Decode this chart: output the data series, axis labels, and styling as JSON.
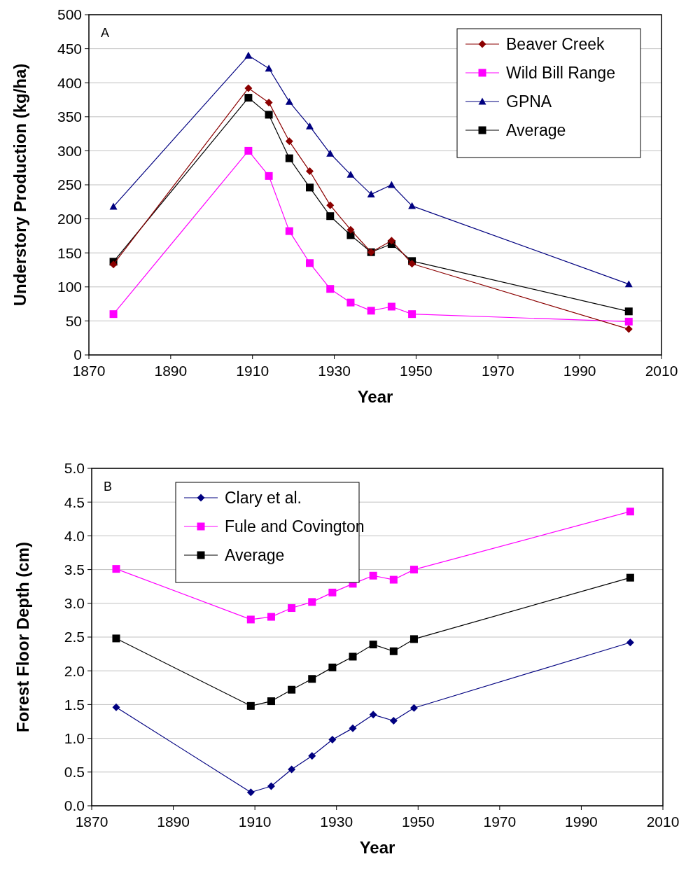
{
  "chart_data": [
    {
      "type": "line",
      "xlabel": "Year",
      "ylabel": "Understory Production (kg/ha)",
      "annotations": [
        "A"
      ],
      "x": [
        1876,
        1909,
        1914,
        1919,
        1924,
        1929,
        1934,
        1939,
        1944,
        1949,
        2002
      ],
      "xlim": [
        1870,
        2010
      ],
      "xticks": [
        1870,
        1890,
        1910,
        1930,
        1950,
        1970,
        1990,
        2010
      ],
      "ylim": [
        0,
        500
      ],
      "yticks": [
        0,
        50,
        100,
        150,
        200,
        250,
        300,
        350,
        400,
        450,
        500
      ],
      "grid": "y",
      "legend": "top right",
      "series": [
        {
          "name": "Beaver Creek",
          "color": "#8b0000",
          "marker": "diamond",
          "values": [
            133,
            392,
            371,
            314,
            270,
            220,
            184,
            151,
            168,
            134,
            38
          ]
        },
        {
          "name": "Wild Bill Range",
          "color": "#ff00ff",
          "marker": "square",
          "values": [
            60,
            300,
            263,
            182,
            135,
            97,
            77,
            65,
            71,
            60,
            49
          ]
        },
        {
          "name": "GPNA",
          "color": "#000080",
          "marker": "triangle",
          "values": [
            218,
            440,
            421,
            372,
            336,
            296,
            265,
            236,
            250,
            219,
            104
          ]
        },
        {
          "name": "Average",
          "color": "#000000",
          "marker": "square",
          "values": [
            137,
            378,
            353,
            289,
            246,
            204,
            176,
            151,
            163,
            138,
            64
          ]
        }
      ]
    },
    {
      "type": "line",
      "xlabel": "Year",
      "ylabel": "Forest Floor Depth (cm)",
      "annotations": [
        "B"
      ],
      "x": [
        1876,
        1909,
        1914,
        1919,
        1924,
        1929,
        1934,
        1939,
        1944,
        1949,
        2002
      ],
      "xlim": [
        1870,
        2010
      ],
      "xticks": [
        1870,
        1890,
        1910,
        1930,
        1950,
        1970,
        1990,
        2010
      ],
      "ylim": [
        0,
        5
      ],
      "yticks": [
        {
          "value": 0,
          "label": "0.0"
        },
        {
          "value": 0.5,
          "label": "0.5"
        },
        {
          "value": 1,
          "label": "1.0"
        },
        {
          "value": 1.5,
          "label": "1.5"
        },
        {
          "value": 2,
          "label": "2.0"
        },
        {
          "value": 2.5,
          "label": "2.5"
        },
        {
          "value": 3,
          "label": "3.0"
        },
        {
          "value": 3.5,
          "label": "3.5"
        },
        {
          "value": 4,
          "label": "4.0"
        },
        {
          "value": 4.5,
          "label": "4.5"
        },
        {
          "value": 5,
          "label": "5.0"
        }
      ],
      "grid": "y",
      "legend": "top left",
      "series": [
        {
          "name": "Clary et al.",
          "color": "#000080",
          "marker": "diamond",
          "values": [
            1.46,
            0.2,
            0.29,
            0.54,
            0.74,
            0.98,
            1.15,
            1.35,
            1.26,
            1.45,
            2.42
          ]
        },
        {
          "name": "Fule and Covington",
          "color": "#ff00ff",
          "marker": "square",
          "values": [
            3.51,
            2.76,
            2.8,
            2.93,
            3.02,
            3.16,
            3.29,
            3.41,
            3.35,
            3.5,
            4.36
          ]
        },
        {
          "name": "Average",
          "color": "#000000",
          "marker": "square",
          "values": [
            2.48,
            1.48,
            1.55,
            1.72,
            1.88,
            2.05,
            2.21,
            2.39,
            2.29,
            2.47,
            3.38
          ]
        }
      ]
    }
  ]
}
